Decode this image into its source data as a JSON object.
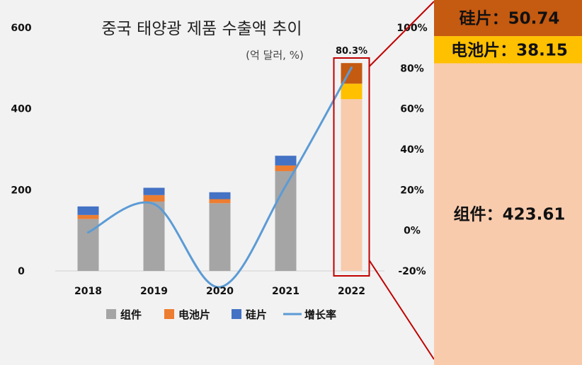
{
  "chart_data": {
    "type": "bar",
    "title": "중국 태양광 제품 수출액 추이",
    "unit_note": "(억 달러, %)",
    "categories": [
      "2018",
      "2019",
      "2020",
      "2021",
      "2022"
    ],
    "series": [
      {
        "name": "组件",
        "kind": "bar",
        "color": "#a5a5a5",
        "values": [
          128,
          171,
          167,
          246,
          423.61
        ]
      },
      {
        "name": "电池片",
        "kind": "bar",
        "color": "#ed7d31",
        "values": [
          10,
          16,
          10,
          14,
          38.15
        ]
      },
      {
        "name": "硅片",
        "kind": "bar",
        "color": "#4472c4",
        "values": [
          21,
          18,
          17,
          24,
          50.74
        ]
      },
      {
        "name": "增长率",
        "kind": "line",
        "axis": "right",
        "color": "#5b9bd5",
        "values": [
          -1,
          13,
          -28,
          22,
          80.3
        ]
      }
    ],
    "left_axis": {
      "min": 0,
      "max": 600,
      "ticks": [
        "0",
        "200",
        "400",
        "600"
      ]
    },
    "right_axis": {
      "min": -20,
      "max": 100,
      "ticks": [
        "-20%",
        "0%",
        "20%",
        "40%",
        "60%",
        "80%",
        "100%"
      ]
    },
    "highlight": {
      "category": "2022",
      "label": "80.3%",
      "color": "#c00000"
    },
    "breakdown_2022": [
      {
        "name": "组件",
        "value": 423.61,
        "text": "组件：423.61",
        "color": "#f8cbad"
      },
      {
        "name": "电池片",
        "value": 38.15,
        "text": "电池片：38.15",
        "color": "#ffc000"
      },
      {
        "name": "硅片",
        "value": 50.74,
        "text": "硅片：50.74",
        "color": "#c55a11"
      }
    ],
    "legend_position": "bottom",
    "grid": false
  }
}
